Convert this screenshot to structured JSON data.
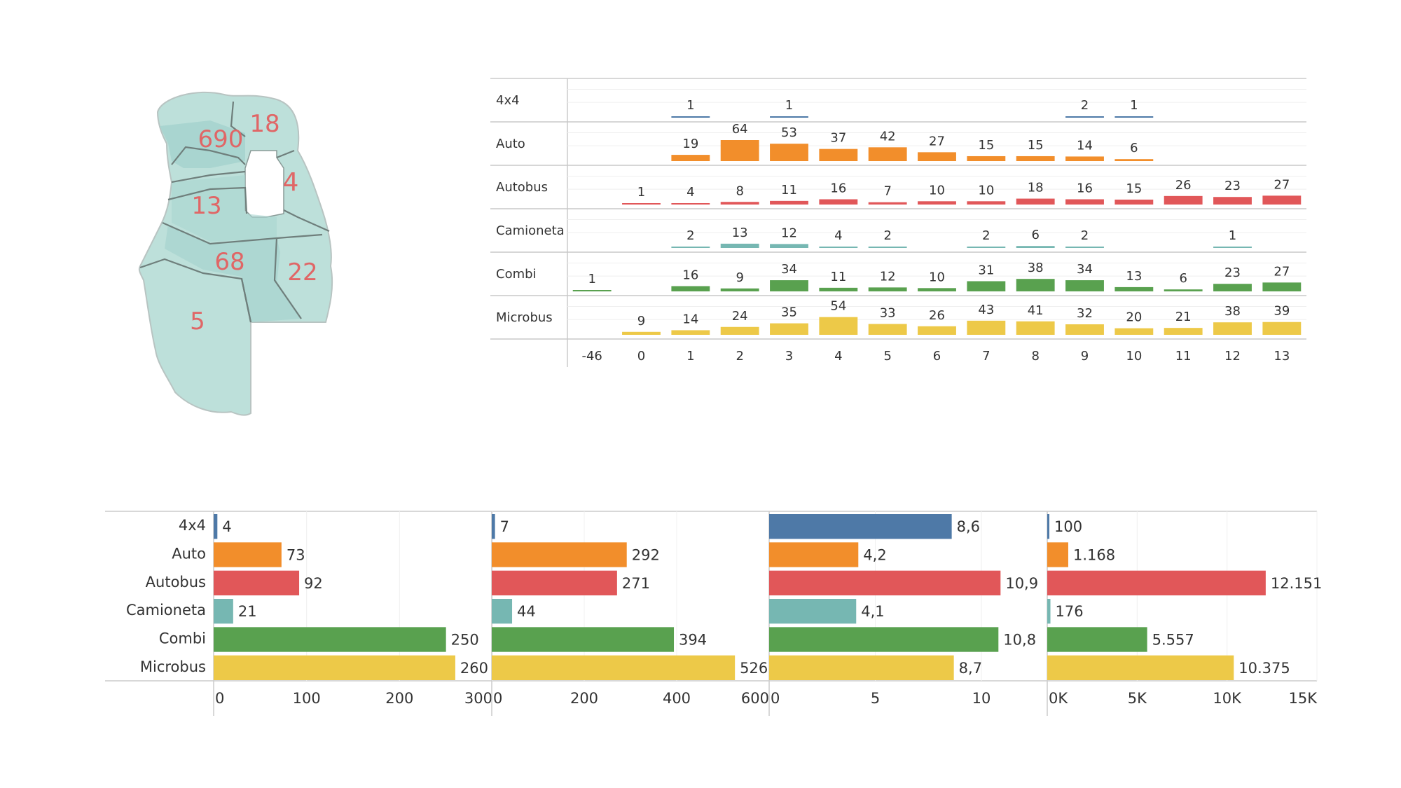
{
  "colors": {
    "4x4": "#4e79a7",
    "Auto": "#f28e2b",
    "Autobus": "#e15759",
    "Camioneta": "#76b7b2",
    "Combi": "#59a14f",
    "Microbus": "#edc948",
    "map_fill": "#bde0da",
    "map_fill_dark": "#a9d5d0",
    "map_stroke": "#6f7f7c",
    "map_label": "#e06666"
  },
  "map": {
    "labels": [
      "18",
      "690",
      "4",
      "13",
      "68",
      "22",
      "5"
    ]
  },
  "chart_data": [
    {
      "type": "bar",
      "layout": "small-multiples-by-row",
      "categories": [
        "-46",
        "0",
        "1",
        "2",
        "3",
        "4",
        "5",
        "6",
        "7",
        "8",
        "9",
        "10",
        "11",
        "12",
        "13"
      ],
      "series": [
        {
          "name": "4x4",
          "values": [
            null,
            null,
            1,
            null,
            1,
            null,
            null,
            null,
            null,
            null,
            2,
            1,
            null,
            null,
            null
          ]
        },
        {
          "name": "Auto",
          "values": [
            null,
            null,
            19,
            64,
            53,
            37,
            42,
            27,
            15,
            15,
            14,
            6,
            null,
            null,
            null
          ]
        },
        {
          "name": "Autobus",
          "values": [
            null,
            1,
            4,
            8,
            11,
            16,
            7,
            10,
            10,
            18,
            16,
            15,
            26,
            23,
            27
          ]
        },
        {
          "name": "Camioneta",
          "values": [
            null,
            null,
            2,
            13,
            12,
            4,
            2,
            null,
            2,
            6,
            2,
            null,
            null,
            1,
            null
          ]
        },
        {
          "name": "Combi",
          "values": [
            1,
            null,
            16,
            9,
            34,
            11,
            12,
            10,
            31,
            38,
            34,
            13,
            6,
            23,
            27
          ]
        },
        {
          "name": "Microbus",
          "values": [
            null,
            9,
            14,
            24,
            35,
            54,
            33,
            26,
            43,
            41,
            32,
            20,
            21,
            38,
            39
          ]
        }
      ]
    },
    {
      "type": "bar",
      "orientation": "horizontal",
      "categories": [
        "4x4",
        "Auto",
        "Autobus",
        "Camioneta",
        "Combi",
        "Microbus"
      ],
      "panels": [
        {
          "values": [
            4,
            73,
            92,
            21,
            250,
            260
          ],
          "labels": [
            "4",
            "73",
            "92",
            "21",
            "250",
            "260"
          ],
          "xlim": [
            0,
            300
          ],
          "ticks": [
            0,
            100,
            200,
            300
          ],
          "tick_labels": [
            "0",
            "100",
            "200",
            "300"
          ]
        },
        {
          "values": [
            7,
            292,
            271,
            44,
            394,
            526
          ],
          "labels": [
            "7",
            "292",
            "271",
            "44",
            "394",
            "526"
          ],
          "xlim": [
            0,
            600
          ],
          "ticks": [
            0,
            200,
            400,
            600
          ],
          "tick_labels": [
            "0",
            "200",
            "400",
            "600"
          ]
        },
        {
          "values": [
            8.6,
            4.2,
            10.9,
            4.1,
            10.8,
            8.7
          ],
          "labels": [
            "8,6",
            "4,2",
            "10,9",
            "4,1",
            "10,8",
            "8,7"
          ],
          "xlim": [
            0,
            13.1
          ],
          "ticks": [
            0,
            5,
            10
          ],
          "tick_labels": [
            "0",
            "5",
            "10"
          ]
        },
        {
          "values": [
            100,
            1168,
            12151,
            176,
            5557,
            10375
          ],
          "labels": [
            "100",
            "1.168",
            "12.151",
            "176",
            "5.557",
            "10.375"
          ],
          "xlim": [
            0,
            15000
          ],
          "ticks": [
            0,
            5000,
            10000,
            15000
          ],
          "tick_labels": [
            "0K",
            "5K",
            "10K",
            "15K"
          ]
        }
      ]
    }
  ]
}
